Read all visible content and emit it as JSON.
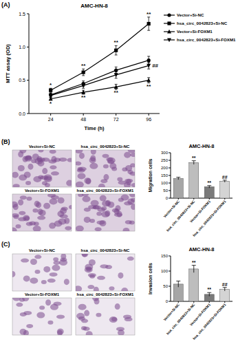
{
  "panels": [
    {
      "label": "(A)"
    },
    {
      "label": "(B)",
      "images": [
        "Vector+Si-NC",
        "hsa_circ_0042823+Si-NC",
        "Vector+Si-FOXM1",
        "hsa_circ_0042823+Si-FOXM1"
      ]
    },
    {
      "label": "(C)",
      "images": [
        "Vector+Si-NC",
        "hsa_circ_0042823+Si-NC",
        "Vector+Si-FOXM1",
        "hsa_circ_0042823+Si-FOXM1"
      ]
    }
  ],
  "chart_data": [
    {
      "type": "line",
      "title": "AMC-HN-8",
      "x_label": "Time (h)",
      "y_label": "MTT assay (OD)",
      "x": [
        24,
        48,
        72,
        96
      ],
      "xlim": [
        8,
        104
      ],
      "xticks": [
        24,
        48,
        72,
        96
      ],
      "ylim": [
        0,
        1.5
      ],
      "yticks": [
        {
          "value": 0,
          "label": "0.0"
        },
        {
          "value": 0.5,
          "label": "0.5"
        },
        {
          "value": 1,
          "label": "1.0"
        },
        {
          "value": 1.5,
          "label": "1.5"
        }
      ],
      "legend": "right",
      "series": [
        {
          "name": "Vector+Si-NC",
          "color": "#000000",
          "marker": "circle",
          "values": [
            0.28,
            0.45,
            0.65,
            0.8
          ],
          "errors": [
            0.03,
            0.04,
            0.05,
            0.06
          ],
          "annotations": [
            null,
            null,
            null,
            null
          ]
        },
        {
          "name": "hsa_circ_0042823+Si-NC",
          "color": "#000000",
          "marker": "square",
          "values": [
            0.35,
            0.62,
            0.95,
            1.35
          ],
          "errors": [
            0.03,
            0.05,
            0.07,
            0.1
          ],
          "annotations": [
            "*",
            "**",
            "**",
            "**"
          ]
        },
        {
          "name": "Vector+Si-FOXM1",
          "color": "#000000",
          "marker": "triangle-up",
          "values": [
            0.22,
            0.32,
            0.4,
            0.5
          ],
          "errors": [
            0.02,
            0.03,
            0.04,
            0.04
          ],
          "annotations": [
            "*",
            "**",
            "**",
            "**"
          ]
        },
        {
          "name": "hsa_circ_0042823+Si-FOXM1",
          "color": "#000000",
          "marker": "triangle-down",
          "values": [
            0.27,
            0.42,
            0.58,
            0.72
          ],
          "errors": [
            0.03,
            0.04,
            0.05,
            0.05
          ],
          "annotations": [
            null,
            null,
            null,
            "##"
          ]
        }
      ]
    },
    {
      "type": "bar",
      "title": "AMC-HN-8",
      "y_label": "Migration cells",
      "categories": [
        "Vector+Si-NC",
        "hsa_circ_0042823+Si-NC",
        "Vector+Si-FOXM1",
        "hsa_circ_0042823+Si-FOXM1"
      ],
      "values": [
        130,
        235,
        75,
        112
      ],
      "errors": [
        8,
        12,
        8,
        7
      ],
      "annotations": [
        null,
        "**",
        "**",
        "##"
      ],
      "colors": [
        "#a6a6a6",
        "#bdbdbd",
        "#7a7a7a",
        "#d4d4d4"
      ],
      "ylim": [
        0,
        300
      ],
      "yticks": [
        0,
        50,
        100,
        150,
        200,
        250,
        300
      ]
    },
    {
      "type": "bar",
      "title": "AMC-HN-8",
      "y_label": "Invasion cells",
      "categories": [
        "Vector+Si-NC",
        "hsa_circ_0042823+Si-NC",
        "Vector+Si-FOXM1",
        "hsa_circ_0042823+Si-FOXM1"
      ],
      "values": [
        57,
        107,
        23,
        40
      ],
      "errors": [
        10,
        12,
        6,
        6
      ],
      "annotations": [
        null,
        "**",
        "**",
        "##"
      ],
      "colors": [
        "#a6a6a6",
        "#bdbdbd",
        "#7a7a7a",
        "#d4d4d4"
      ],
      "ylim": [
        0,
        150
      ],
      "yticks": [
        0,
        50,
        100,
        150
      ]
    }
  ]
}
